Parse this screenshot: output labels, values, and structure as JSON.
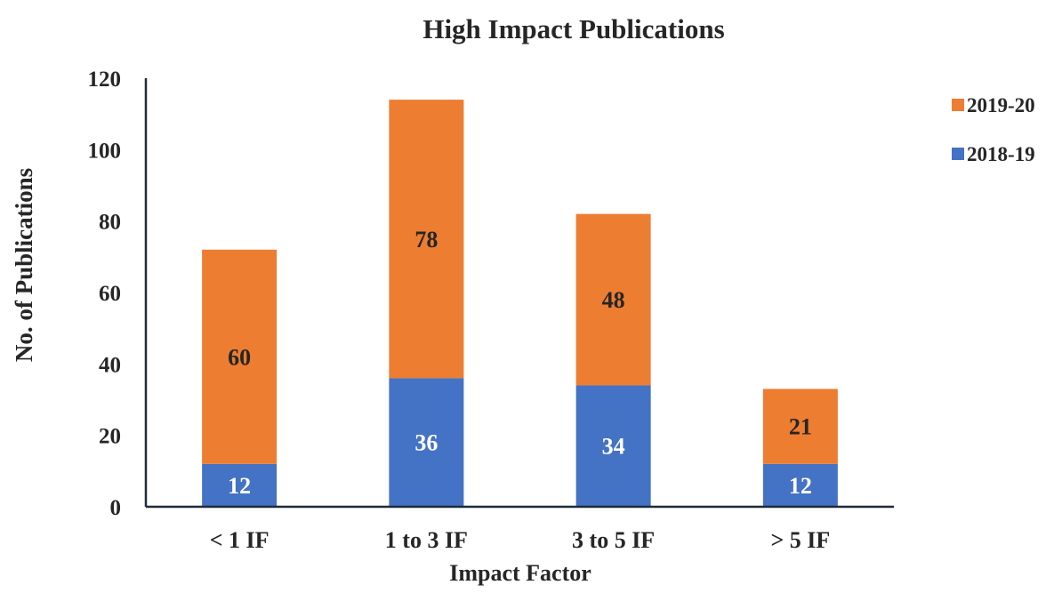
{
  "chart_data": {
    "type": "bar",
    "stacked": true,
    "title": "High Impact Publications",
    "xlabel": "Impact Factor",
    "ylabel": "No. of Publications",
    "categories": [
      "< 1 IF",
      "1 to 3 IF",
      "3 to 5 IF",
      "> 5 IF"
    ],
    "series": [
      {
        "name": "2018-19",
        "values": [
          12,
          36,
          34,
          12
        ],
        "color": "#4472C4",
        "label_color": "#ffffff"
      },
      {
        "name": "2019-20",
        "values": [
          60,
          78,
          48,
          21
        ],
        "color": "#ED7D31",
        "label_color": "#262626"
      }
    ],
    "ylim": [
      0,
      120
    ],
    "yticks": [
      0,
      20,
      40,
      60,
      80,
      100,
      120
    ],
    "grid": false,
    "legend": {
      "position": "right",
      "order": [
        "2019-20",
        "2018-19"
      ]
    },
    "data_labels": true
  }
}
